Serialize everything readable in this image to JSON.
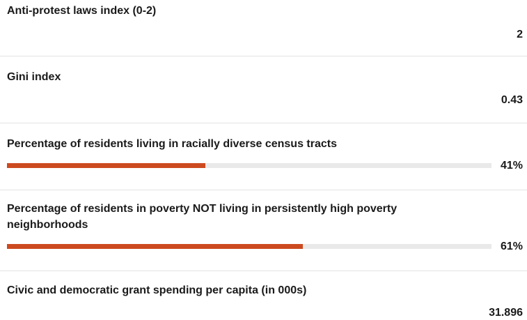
{
  "accent_color": "#cc4a1f",
  "metrics": [
    {
      "label": "Anti-protest laws index (0-2)",
      "value": "2"
    },
    {
      "label": "Gini index",
      "value": "0.43"
    },
    {
      "label": "Percentage of residents living in racially diverse census tracts",
      "value": "41%",
      "fraction": 0.41
    },
    {
      "label": "Percentage of residents in poverty NOT living in persistently high poverty neighborhoods",
      "value": "61%",
      "fraction": 0.61
    },
    {
      "label": "Civic and democratic grant spending per capita (in 000s)",
      "value": "31.896"
    }
  ]
}
